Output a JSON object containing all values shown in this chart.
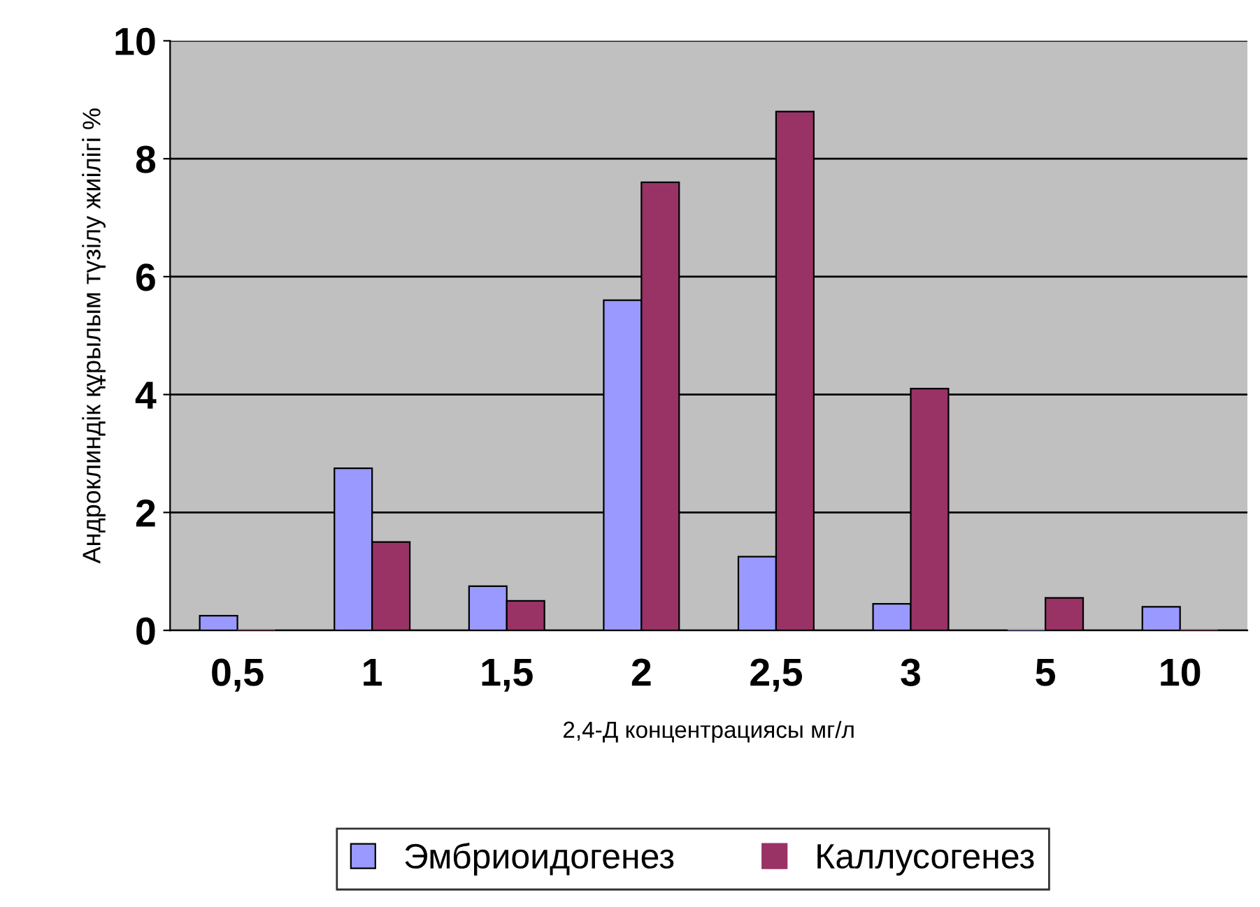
{
  "chart_data": {
    "type": "bar",
    "xlabel": "2,4-Д концентрациясы мг/л",
    "ylabel": "Андроклиндік құрылым түзілу жиілігі %",
    "categories": [
      "0,5",
      "1",
      "1,5",
      "2",
      "2,5",
      "3",
      "5",
      "10"
    ],
    "series": [
      {
        "name": "Эмбриоидогенез",
        "color": "#9999ff",
        "values": [
          0.25,
          2.75,
          0.75,
          5.6,
          1.25,
          0.45,
          0,
          0.4
        ]
      },
      {
        "name": "Каллусогенез",
        "color": "#993366",
        "values": [
          0,
          1.5,
          0.5,
          7.6,
          8.8,
          4.1,
          0.55,
          0
        ]
      }
    ],
    "ylim": [
      0,
      10
    ],
    "yticks": [
      0,
      2,
      4,
      6,
      8,
      10
    ],
    "grid": "y",
    "legend": "bottom"
  }
}
